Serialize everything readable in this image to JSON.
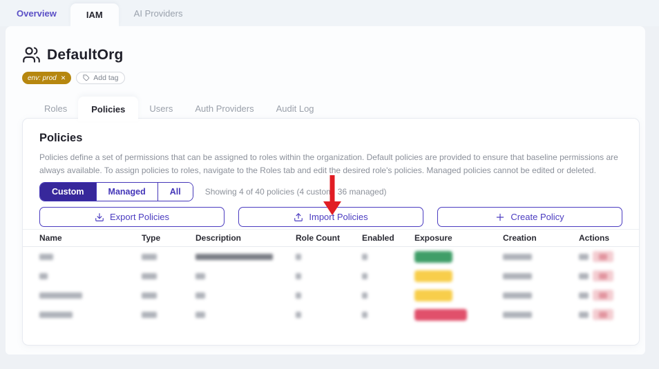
{
  "colors": {
    "accent_purple": "#4a3bc0",
    "segment_active_bg": "#37289b",
    "tag_gold": "#b6870f",
    "arrow_red": "#e11d24",
    "exposure": {
      "green": "#3f9e68",
      "yellow": "#f8ce4b",
      "red": "#e1506b"
    }
  },
  "top_tabs": {
    "items": [
      {
        "label": "Overview",
        "active": false
      },
      {
        "label": "IAM",
        "active": true
      },
      {
        "label": "AI Providers",
        "active": false
      }
    ]
  },
  "org": {
    "title": "DefaultOrg",
    "tag": {
      "label": "env: prod"
    },
    "add_tag_label": "Add tag"
  },
  "sub_tabs": {
    "items": [
      {
        "label": "Roles"
      },
      {
        "label": "Policies"
      },
      {
        "label": "Users"
      },
      {
        "label": "Auth Providers"
      },
      {
        "label": "Audit Log"
      }
    ],
    "active": "Policies"
  },
  "policies": {
    "title": "Policies",
    "description": "Policies define a set of permissions that can be assigned to roles within the organization. Default policies are provided to ensure that baseline permissions are always available. To assign policies to roles, navigate to the Roles tab and edit the desired role's policies. Managed policies cannot be edited or deleted.",
    "filters": {
      "options": [
        "Custom",
        "Managed",
        "All"
      ],
      "selected": "Custom"
    },
    "summary": "Showing 4 of 40 policies (4 custom, 36 managed)",
    "buttons": {
      "export": "Export Policies",
      "import": "Import Policies",
      "create": "Create Policy"
    }
  },
  "table": {
    "columns": [
      "Name",
      "Type",
      "Description",
      "Role Count",
      "Enabled",
      "Exposure",
      "Creation",
      "Actions"
    ],
    "rows": [
      {
        "exposure": "green",
        "badge_w": 55,
        "name_w": 20,
        "type_w": 22,
        "desc_w": 112,
        "desc_dark": true,
        "role_w": 8,
        "enabled_w": 8,
        "creation_w": 42
      },
      {
        "exposure": "yellow",
        "badge_w": 55,
        "name_w": 12,
        "type_w": 22,
        "desc_w": 14,
        "desc_dark": false,
        "role_w": 8,
        "enabled_w": 8,
        "creation_w": 42
      },
      {
        "exposure": "yellow",
        "badge_w": 55,
        "name_w": 62,
        "type_w": 22,
        "desc_w": 14,
        "desc_dark": false,
        "role_w": 8,
        "enabled_w": 8,
        "creation_w": 42
      },
      {
        "exposure": "red",
        "badge_w": 76,
        "name_w": 48,
        "type_w": 22,
        "desc_w": 14,
        "desc_dark": false,
        "role_w": 8,
        "enabled_w": 8,
        "creation_w": 42
      }
    ]
  },
  "annotation": {
    "arrow_color": "#e11d24",
    "arrow_target": "Import Policies"
  }
}
